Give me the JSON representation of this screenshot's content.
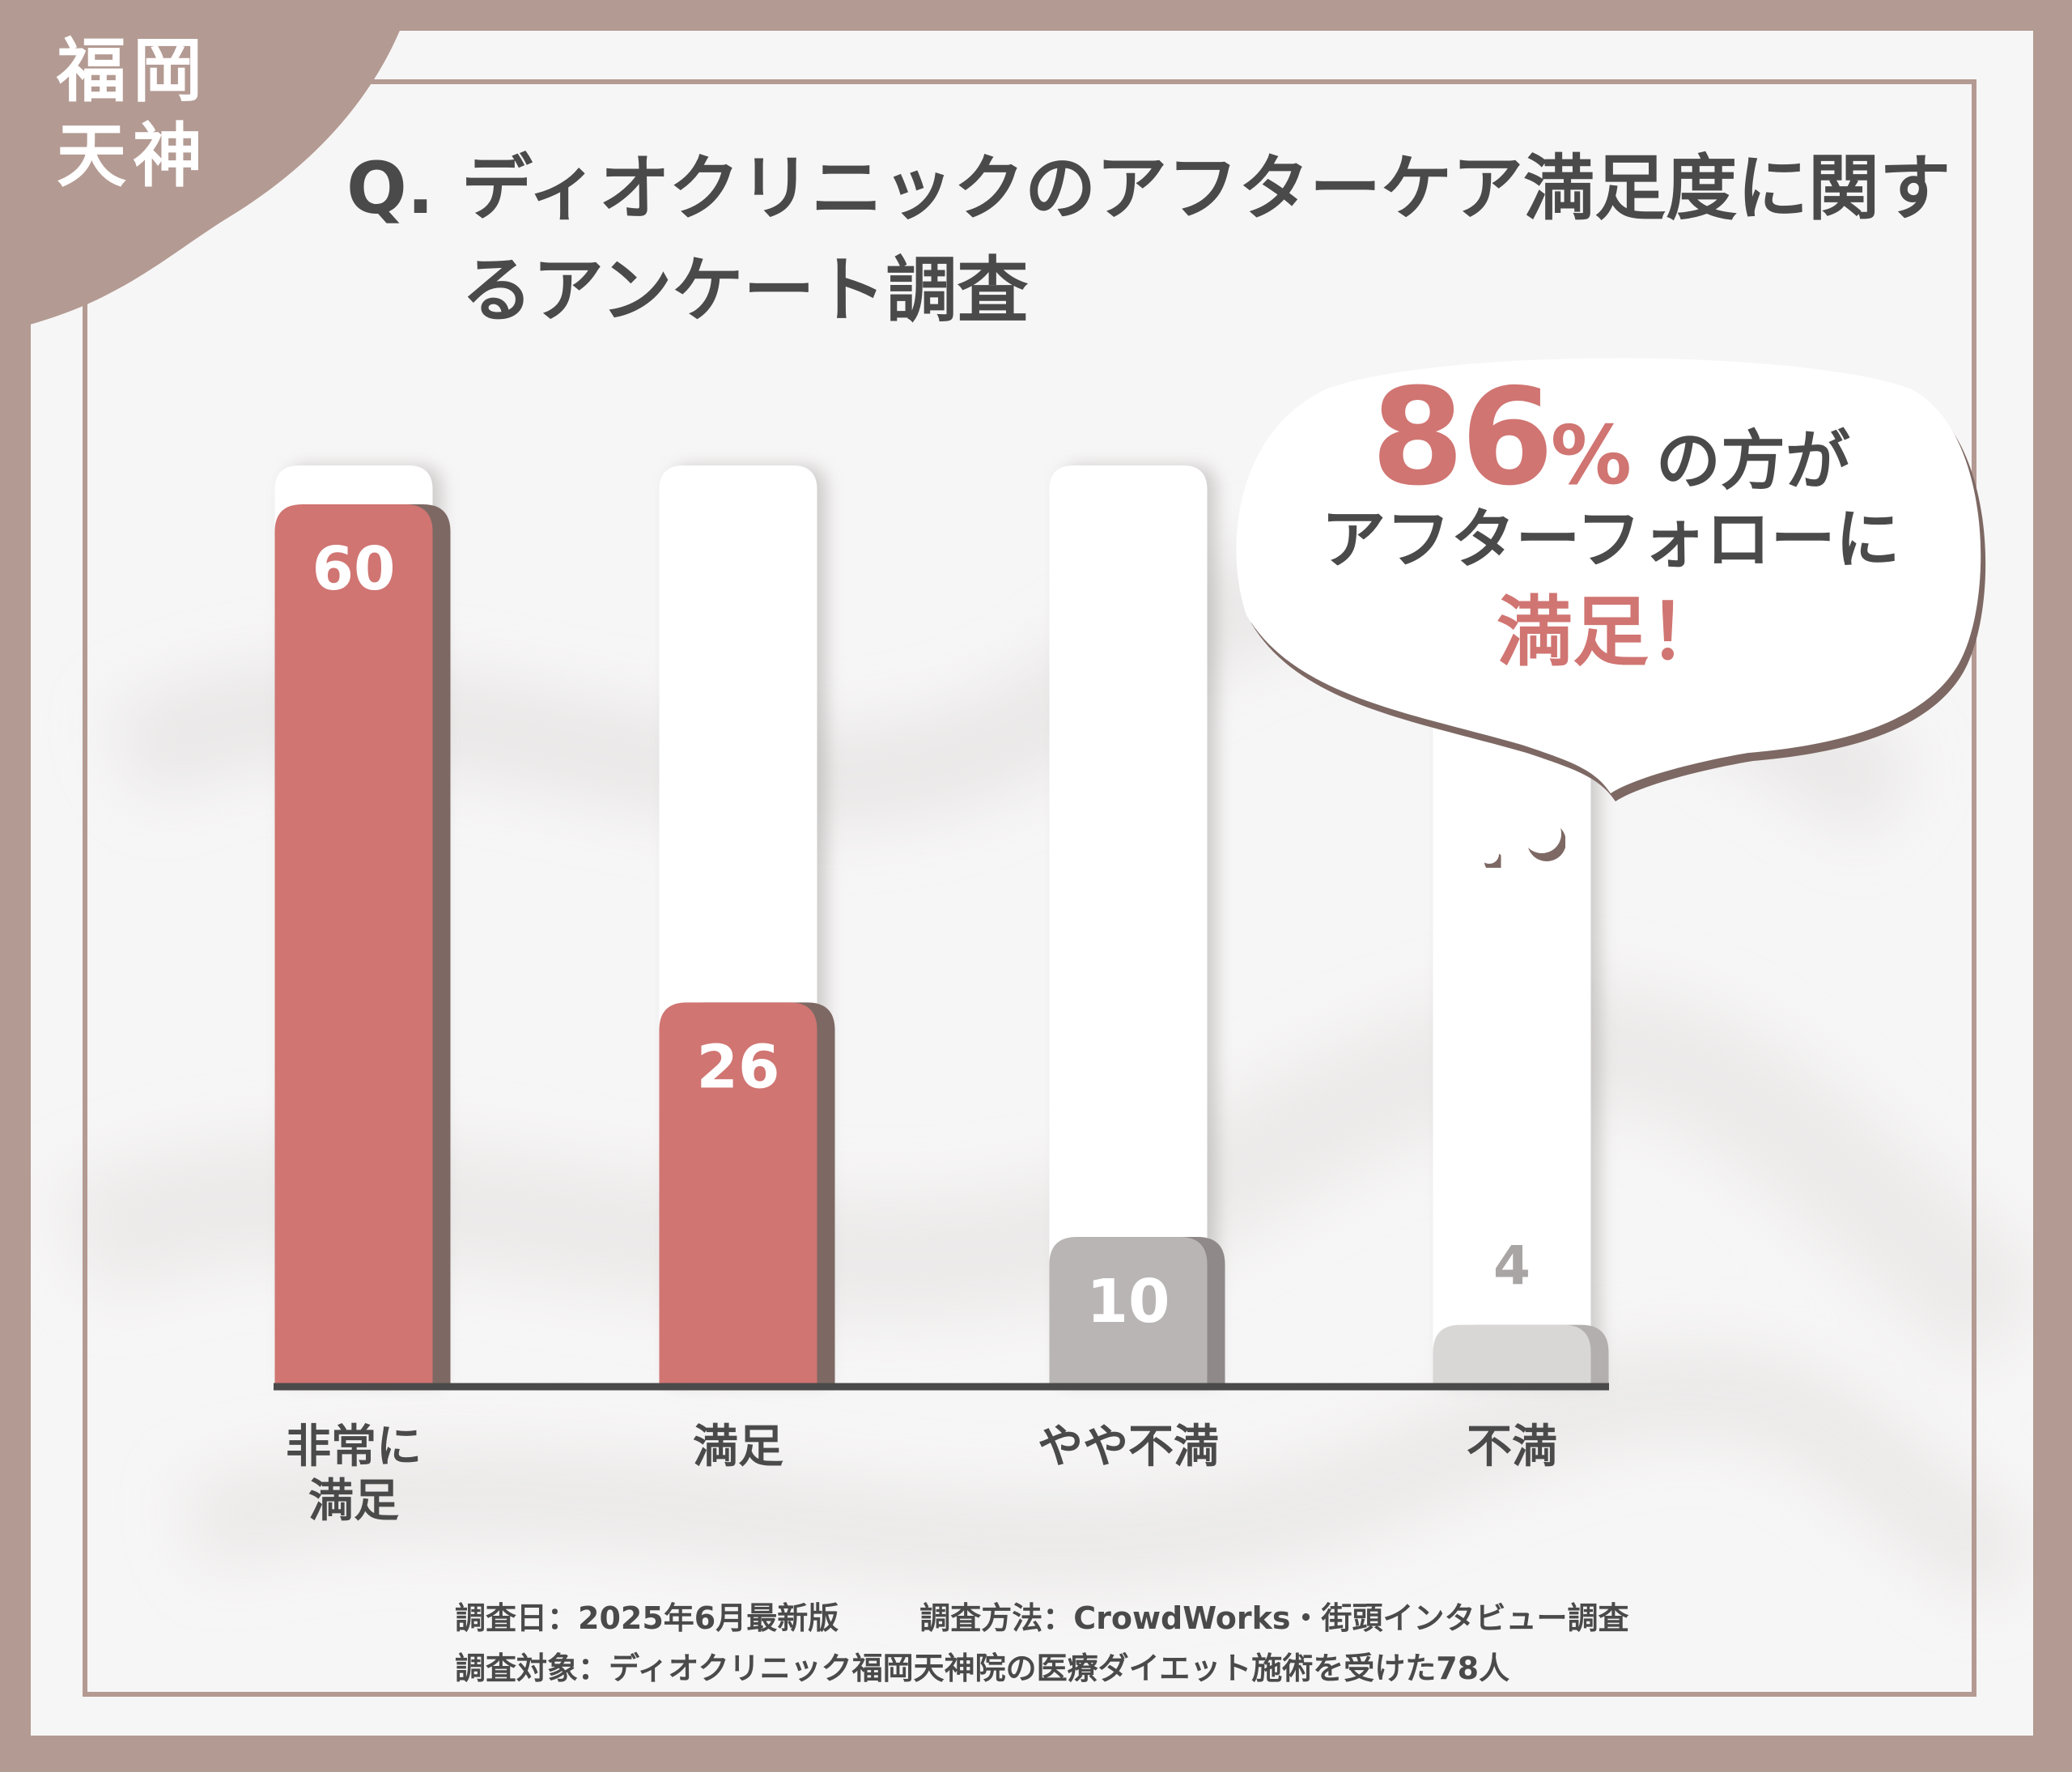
{
  "badge": {
    "line1": "福岡",
    "line2": "天神"
  },
  "question": {
    "prefix": "Q.",
    "text": "ディオクリニックのアフターケア満足度に関するアンケート調査"
  },
  "callout": {
    "percent": "86",
    "percent_sign": "%",
    "line1_rest": "の方が",
    "line2": "アフターフォローに",
    "line3": "満足！"
  },
  "footer": {
    "date": "調査日：2025年6月最新版",
    "method": "調査方法：CrowdWorks・街頭インタビュー調査",
    "target": "調査対象：ディオクリニック福岡天神院の医療ダイエット施術を受けた78人"
  },
  "colors": {
    "accent": "#d07572",
    "neutral": "#b9b5b4",
    "light": "#d9d7d6",
    "frame": "#b39a92",
    "text": "#4a4a4a"
  },
  "chart_data": {
    "type": "bar",
    "categories": [
      "非常に\n満足",
      "満足",
      "やや不満",
      "不満"
    ],
    "values": [
      60,
      26,
      10,
      4
    ],
    "title": "",
    "xlabel": "",
    "ylabel": "",
    "ylim": [
      0,
      100
    ],
    "grid": false
  }
}
